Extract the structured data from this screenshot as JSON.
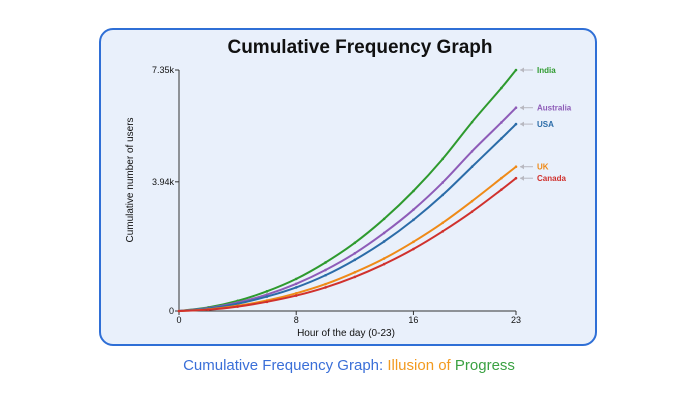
{
  "chart_data": {
    "type": "line",
    "title": "Cumulative Frequency Graph",
    "xlabel": "Hour of the day (0-23)",
    "ylabel": "Cumulative number of users",
    "xlim": [
      0,
      23
    ],
    "ylim": [
      0,
      7350
    ],
    "x_ticks": [
      "0",
      "8",
      "16",
      "23"
    ],
    "y_ticks": [
      "0",
      "3.94k",
      "7.35k"
    ],
    "grid": false,
    "legend_placement": "right end of lines",
    "x": [
      0,
      2,
      4,
      6,
      8,
      10,
      12,
      14,
      16,
      18,
      20,
      22,
      23
    ],
    "series": [
      {
        "name": "India",
        "color": "#2e9a2e",
        "values": [
          0,
          110,
          310,
          600,
          980,
          1480,
          2080,
          2810,
          3660,
          4640,
          5760,
          6800,
          7350
        ]
      },
      {
        "name": "Australia",
        "color": "#8e5cb8",
        "values": [
          0,
          90,
          260,
          500,
          830,
          1250,
          1760,
          2380,
          3090,
          3920,
          4870,
          5750,
          6200
        ]
      },
      {
        "name": "USA",
        "color": "#2b6ca8",
        "values": [
          0,
          75,
          220,
          440,
          720,
          1090,
          1560,
          2120,
          2780,
          3540,
          4400,
          5260,
          5700
        ]
      },
      {
        "name": "UK",
        "color": "#ef8a17",
        "values": [
          0,
          50,
          160,
          320,
          540,
          820,
          1180,
          1600,
          2110,
          2690,
          3350,
          4050,
          4400
        ]
      },
      {
        "name": "Canada",
        "color": "#d0312d",
        "values": [
          0,
          40,
          135,
          280,
          470,
          720,
          1040,
          1430,
          1890,
          2430,
          3030,
          3700,
          4050
        ]
      }
    ]
  },
  "caption": {
    "part1": "Cumulative Frequency Graph:",
    "part2": "Illusion of",
    "part3": "Progress",
    "color1": "#3a6fd8",
    "color2": "#f29a1f",
    "color3": "#3aa142"
  }
}
